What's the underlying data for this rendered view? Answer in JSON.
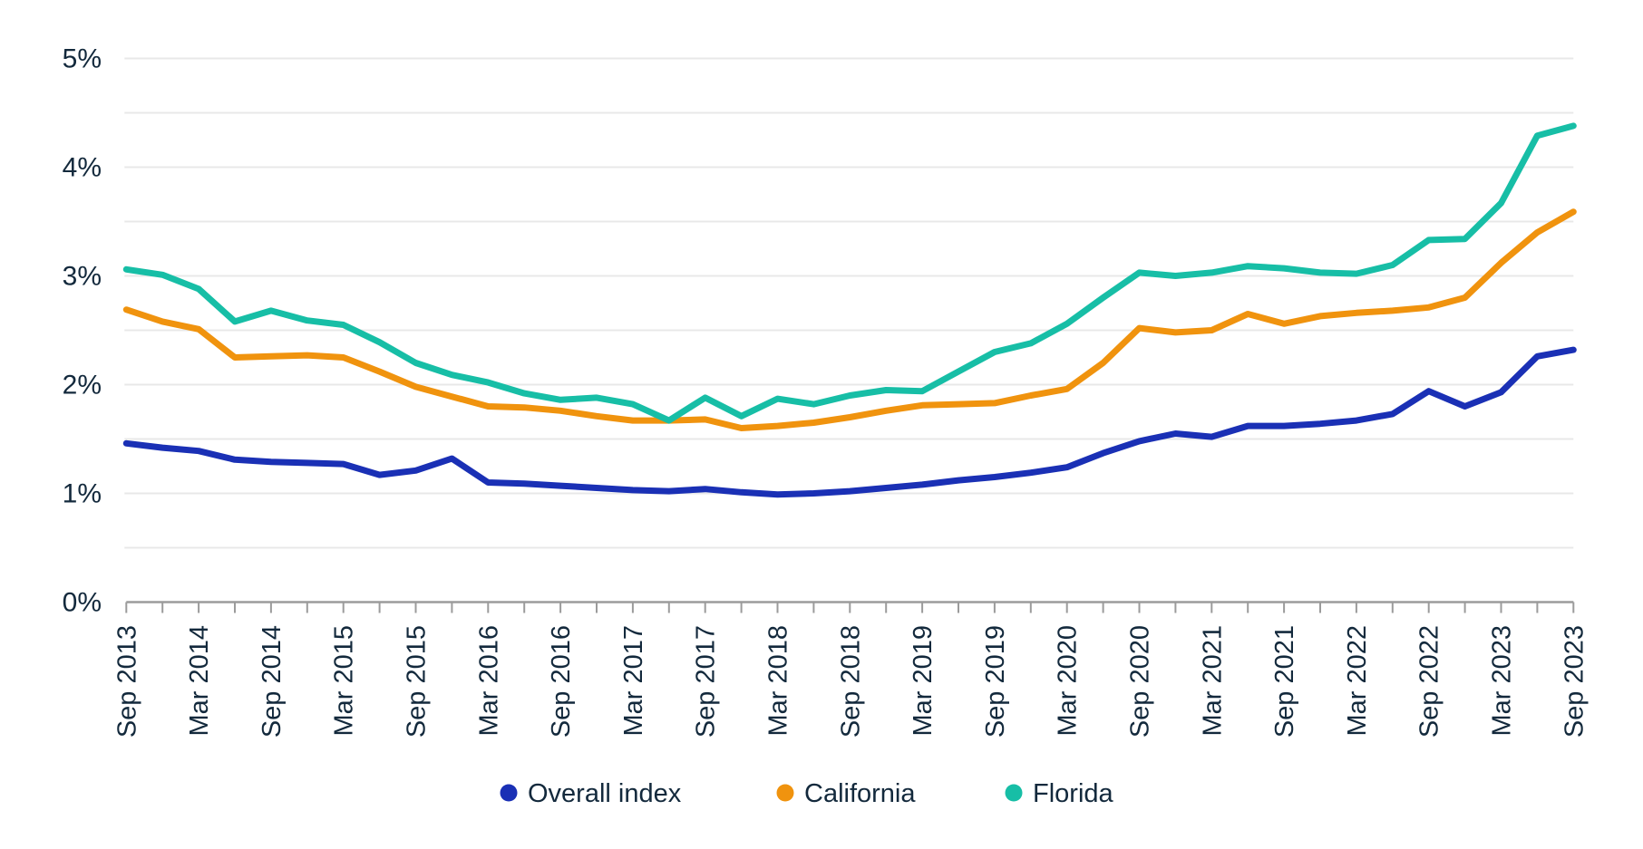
{
  "chart_data": {
    "type": "line",
    "title": "",
    "xlabel": "",
    "ylabel": "",
    "ylim": [
      0,
      5
    ],
    "y_tick_labels": [
      "0%",
      "1%",
      "2%",
      "3%",
      "4%",
      "5%"
    ],
    "y_gridline_step_percent": 0.5,
    "grid": "horizontal gridlines on, light gray, every 0.5%",
    "x_tick_every": "quarter",
    "x_label_every": "6 months",
    "legend_position": "bottom-center",
    "categories": [
      "Sep 2013",
      "Dec 2013",
      "Mar 2014",
      "Jun 2014",
      "Sep 2014",
      "Dec 2014",
      "Mar 2015",
      "Jun 2015",
      "Sep 2015",
      "Dec 2015",
      "Mar 2016",
      "Jun 2016",
      "Sep 2016",
      "Dec 2016",
      "Mar 2017",
      "Jun 2017",
      "Sep 2017",
      "Dec 2017",
      "Mar 2018",
      "Jun 2018",
      "Sep 2018",
      "Dec 2018",
      "Mar 2019",
      "Jun 2019",
      "Sep 2019",
      "Dec 2019",
      "Mar 2020",
      "Jun 2020",
      "Sep 2020",
      "Dec 2020",
      "Mar 2021",
      "Jun 2021",
      "Sep 2021",
      "Dec 2021",
      "Mar 2022",
      "Jun 2022",
      "Sep 2022",
      "Dec 2022",
      "Mar 2023",
      "Jun 2023",
      "Sep 2023"
    ],
    "series": [
      {
        "name": "Overall index",
        "color": "#1A30B5",
        "values": [
          1.46,
          1.42,
          1.39,
          1.31,
          1.29,
          1.28,
          1.27,
          1.17,
          1.21,
          1.32,
          1.1,
          1.09,
          1.07,
          1.05,
          1.03,
          1.02,
          1.04,
          1.01,
          0.99,
          1.0,
          1.02,
          1.05,
          1.08,
          1.12,
          1.15,
          1.19,
          1.24,
          1.37,
          1.48,
          1.55,
          1.52,
          1.62,
          1.62,
          1.64,
          1.67,
          1.73,
          1.94,
          1.8,
          1.93,
          2.26,
          2.32
        ]
      },
      {
        "name": "California",
        "color": "#F0930E",
        "values": [
          2.69,
          2.58,
          2.51,
          2.25,
          2.26,
          2.27,
          2.25,
          2.12,
          1.98,
          1.89,
          1.8,
          1.79,
          1.76,
          1.71,
          1.67,
          1.67,
          1.68,
          1.6,
          1.62,
          1.65,
          1.7,
          1.76,
          1.81,
          1.82,
          1.83,
          1.9,
          1.96,
          2.2,
          2.52,
          2.48,
          2.5,
          2.65,
          2.56,
          2.63,
          2.66,
          2.68,
          2.71,
          2.8,
          3.12,
          3.4,
          3.59
        ]
      },
      {
        "name": "Florida",
        "color": "#17BEA6",
        "values": [
          3.06,
          3.01,
          2.88,
          2.58,
          2.68,
          2.59,
          2.55,
          2.39,
          2.2,
          2.09,
          2.02,
          1.92,
          1.86,
          1.88,
          1.82,
          1.67,
          1.88,
          1.71,
          1.87,
          1.82,
          1.9,
          1.95,
          1.94,
          2.12,
          2.3,
          2.38,
          2.56,
          2.8,
          3.03,
          3.0,
          3.03,
          3.09,
          3.07,
          3.03,
          3.02,
          3.1,
          3.33,
          3.34,
          3.67,
          4.29,
          4.38
        ]
      }
    ]
  },
  "legend": {
    "items": [
      {
        "label": "Overall index",
        "color": "#1A30B5"
      },
      {
        "label": "California",
        "color": "#F0930E"
      },
      {
        "label": "Florida",
        "color": "#17BEA6"
      }
    ]
  },
  "colors": {
    "background": "#FFFFFF",
    "gridline": "#E8E8E8",
    "axis": "#9B9B9B",
    "text": "#13293C"
  }
}
